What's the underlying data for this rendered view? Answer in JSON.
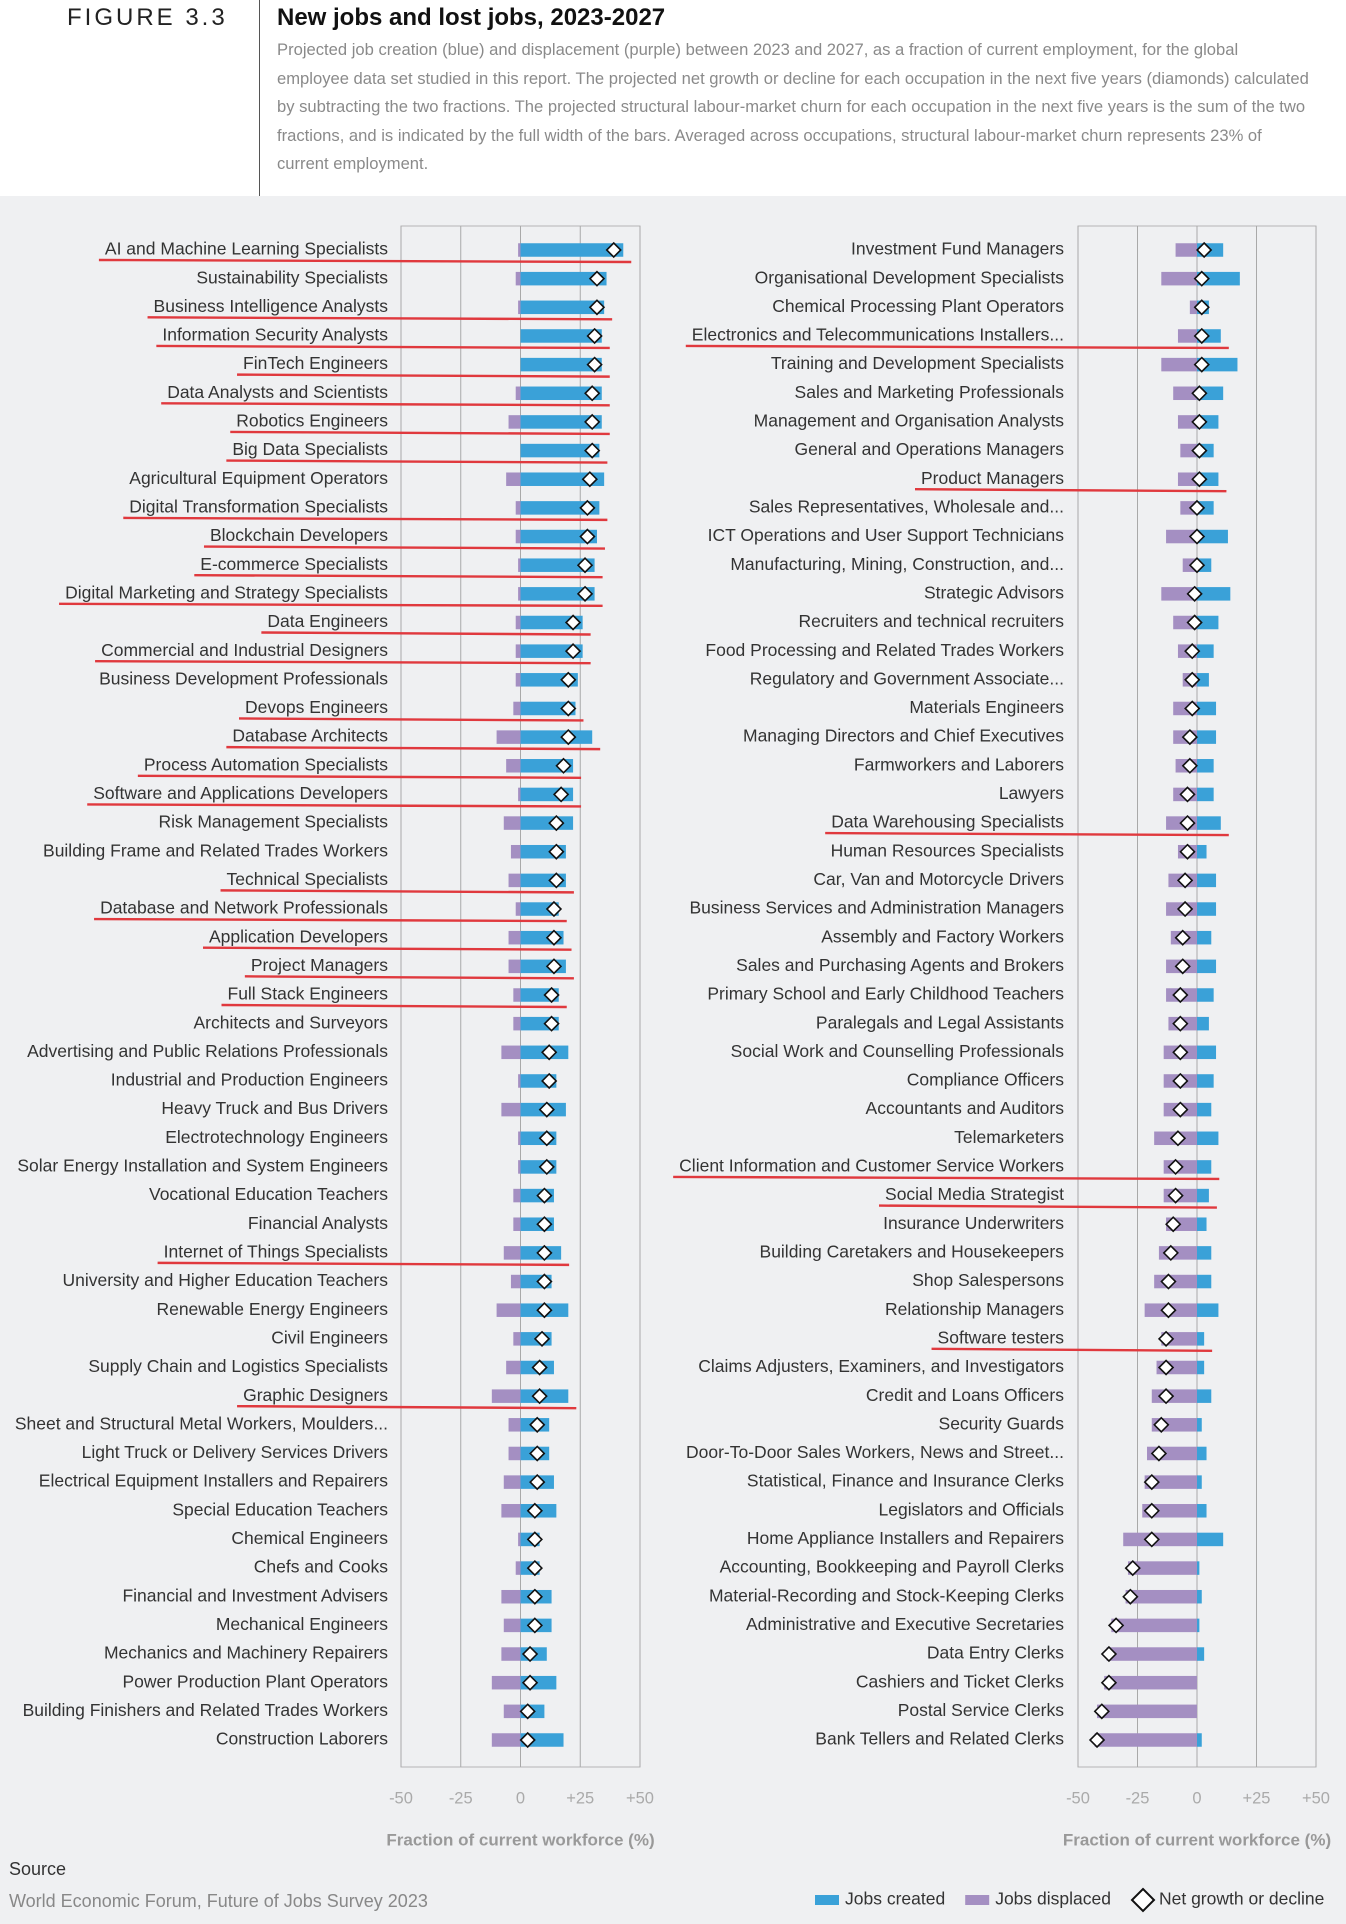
{
  "header": {
    "figure_label": "FIGURE 3.3",
    "title": "New jobs and lost jobs, 2023-2027",
    "subtitle": "Projected job creation (blue) and displacement (purple) between 2023 and 2027, as a fraction of current employment, for the global employee data set studied in this report. The projected net growth or decline for each occupation in the next five years (diamonds) calculated by subtracting the two fractions. The projected structural labour-market churn for each occupation in the next five years is the sum of the two fractions, and is indicated by the full width of the bars. Averaged across occupations, structural labour-market churn represents 23% of current employment."
  },
  "chart_data": {
    "type": "bar",
    "orientation": "horizontal",
    "xlabel": "Fraction of current workforce (%)",
    "xlim": [
      -50,
      50
    ],
    "xticks": [
      -50,
      -25,
      0,
      {
        "value": 25,
        "label": "+25"
      },
      {
        "value": 50,
        "label": "+50"
      }
    ],
    "grid": true,
    "legend": "bottom-right",
    "series": [
      {
        "name": "Jobs created",
        "color": "#3aa1d8"
      },
      {
        "name": "Jobs displaced",
        "color": "#a48fc2"
      },
      {
        "name": "Net growth or decline",
        "color": "#ffffff",
        "marker": "diamond"
      }
    ],
    "panels": [
      {
        "categories": [
          "AI and Machine Learning Specialists",
          "Sustainability Specialists",
          "Business Intelligence Analysts",
          "Information Security Analysts",
          "FinTech Engineers",
          "Data Analysts and Scientists",
          "Robotics Engineers",
          "Big Data Specialists",
          "Agricultural Equipment Operators",
          "Digital Transformation Specialists",
          "Blockchain Developers",
          "E-commerce Specialists",
          "Digital Marketing and Strategy Specialists",
          "Data Engineers",
          "Commercial and Industrial Designers",
          "Business Development Professionals",
          "Devops Engineers",
          "Database Architects",
          "Process Automation Specialists",
          "Software and Applications Developers",
          "Risk Management Specialists",
          "Building Frame and Related Trades Workers",
          "Technical Specialists",
          "Database and Network Professionals",
          "Application Developers",
          "Project Managers",
          "Full Stack Engineers",
          "Architects and Surveyors",
          "Advertising and Public Relations Professionals",
          "Industrial and Production Engineers",
          "Heavy Truck and Bus Drivers",
          "Electrotechnology Engineers",
          "Solar Energy Installation and System Engineers",
          "Vocational Education Teachers",
          "Financial Analysts",
          "Internet of Things Specialists",
          "University and Higher Education Teachers",
          "Renewable Energy Engineers",
          "Civil Engineers",
          "Supply Chain and Logistics Specialists",
          "Graphic Designers",
          "Sheet and Structural Metal Workers, Moulders...",
          "Light Truck or Delivery Services Drivers",
          "Electrical Equipment Installers and Repairers",
          "Special Education Teachers",
          "Chemical Engineers",
          "Chefs and Cooks",
          "Financial and Investment Advisers",
          "Mechanical Engineers",
          "Mechanics and Machinery Repairers",
          "Power Production Plant Operators",
          "Building Finishers and Related Trades Workers",
          "Construction Laborers"
        ],
        "series": [
          {
            "values": [
              43,
              36,
              35,
              34,
              34,
              34,
              34,
              33,
              35,
              33,
              32,
              31,
              31,
              26,
              26,
              24,
              23,
              30,
              22,
              22,
              22,
              19,
              19,
              16,
              18,
              19,
              16,
              16,
              20,
              15,
              19,
              15,
              15,
              14,
              14,
              17,
              13,
              20,
              13,
              14,
              20,
              12,
              12,
              14,
              15,
              8,
              8,
              13,
              13,
              11,
              15,
              10,
              18
            ]
          },
          {
            "values": [
              -1,
              -2,
              -1,
              0,
              0,
              -2,
              -5,
              0,
              -6,
              -2,
              -2,
              -1,
              -1,
              -2,
              -2,
              -2,
              -3,
              -10,
              -6,
              -1,
              -7,
              -4,
              -5,
              -2,
              -5,
              -5,
              -3,
              -3,
              -8,
              -1,
              -8,
              -1,
              -1,
              -3,
              -3,
              -7,
              -4,
              -10,
              -3,
              -6,
              -12,
              -5,
              -5,
              -7,
              -8,
              -1,
              -2,
              -8,
              -7,
              -8,
              -12,
              -7,
              -12
            ]
          },
          {
            "values": [
              39,
              32,
              32,
              31,
              31,
              30,
              30,
              30,
              29,
              28,
              28,
              27,
              27,
              22,
              22,
              20,
              20,
              20,
              18,
              17,
              15,
              15,
              15,
              14,
              14,
              14,
              13,
              13,
              12,
              12,
              11,
              11,
              11,
              10,
              10,
              10,
              10,
              10,
              9,
              8,
              8,
              7,
              7,
              7,
              6,
              6,
              6,
              6,
              6,
              4,
              4,
              3,
              3
            ]
          }
        ],
        "underlined": [
          0,
          2,
          3,
          4,
          5,
          6,
          7,
          9,
          10,
          11,
          12,
          13,
          14,
          16,
          17,
          18,
          19,
          22,
          23,
          24,
          25,
          26,
          35,
          40
        ]
      },
      {
        "categories": [
          "Investment Fund Managers",
          "Organisational Development Specialists",
          "Chemical Processing Plant Operators",
          "Electronics and Telecommunications Installers...",
          "Training and Development Specialists",
          "Sales and Marketing Professionals",
          "Management and Organisation Analysts",
          "General and Operations Managers",
          "Product Managers",
          "Sales Representatives, Wholesale and...",
          "ICT Operations and User Support Technicians",
          "Manufacturing, Mining, Construction, and...",
          "Strategic Advisors",
          "Recruiters and technical recruiters",
          "Food Processing and Related Trades Workers",
          "Regulatory and Government Associate...",
          "Materials Engineers",
          "Managing Directors and Chief Executives",
          "Farmworkers and Laborers",
          "Lawyers",
          "Data Warehousing Specialists",
          "Human Resources Specialists",
          "Car, Van and Motorcycle Drivers",
          "Business Services and Administration Managers",
          "Assembly and Factory Workers",
          "Sales and Purchasing Agents and Brokers",
          "Primary School and Early Childhood Teachers",
          "Paralegals and Legal Assistants",
          "Social Work and Counselling Professionals",
          "Compliance Officers",
          "Accountants and Auditors",
          "Telemarketers",
          "Client Information and Customer Service Workers",
          "Social Media Strategist",
          "Insurance Underwriters",
          "Building Caretakers and Housekeepers",
          "Shop Salespersons",
          "Relationship Managers",
          "Software testers",
          "Claims Adjusters, Examiners, and Investigators",
          "Credit and Loans Officers",
          "Security Guards",
          "Door-To-Door Sales Workers, News and Street...",
          "Statistical, Finance and Insurance Clerks",
          "Legislators and Officials",
          "Home Appliance Installers and Repairers",
          "Accounting, Bookkeeping and Payroll Clerks",
          "Material-Recording and Stock-Keeping Clerks",
          "Administrative and Executive Secretaries",
          "Data Entry Clerks",
          "Cashiers and Ticket Clerks",
          "Postal Service Clerks",
          "Bank Tellers and Related Clerks"
        ],
        "series": [
          {
            "values": [
              11,
              18,
              5,
              10,
              17,
              11,
              9,
              7,
              9,
              7,
              13,
              6,
              14,
              9,
              7,
              5,
              8,
              8,
              7,
              7,
              10,
              4,
              8,
              8,
              6,
              8,
              7,
              5,
              8,
              7,
              6,
              9,
              6,
              5,
              4,
              6,
              6,
              9,
              3,
              3,
              6,
              2,
              4,
              2,
              4,
              11,
              1,
              2,
              1,
              3,
              0,
              0,
              2
            ]
          },
          {
            "values": [
              -9,
              -15,
              -3,
              -8,
              -15,
              -10,
              -8,
              -7,
              -8,
              -7,
              -13,
              -6,
              -15,
              -10,
              -8,
              -6,
              -10,
              -10,
              -9,
              -10,
              -13,
              -8,
              -12,
              -13,
              -11,
              -13,
              -13,
              -12,
              -14,
              -14,
              -14,
              -18,
              -14,
              -14,
              -13,
              -16,
              -18,
              -22,
              -15,
              -17,
              -19,
              -19,
              -21,
              -22,
              -23,
              -31,
              -29,
              -30,
              -36,
              -38,
              -39,
              -42,
              -43
            ]
          },
          {
            "values": [
              3,
              2,
              2,
              2,
              2,
              1,
              1,
              1,
              1,
              0,
              0,
              0,
              -1,
              -1,
              -2,
              -2,
              -2,
              -3,
              -3,
              -4,
              -4,
              -4,
              -5,
              -5,
              -6,
              -6,
              -7,
              -7,
              -7,
              -7,
              -7,
              -8,
              -9,
              -9,
              -10,
              -11,
              -12,
              -12,
              -13,
              -13,
              -13,
              -15,
              -16,
              -19,
              -19,
              -19,
              -27,
              -28,
              -34,
              -37,
              -37,
              -40,
              -42
            ]
          }
        ],
        "underlined": [
          3,
          8,
          20,
          32,
          33,
          38
        ]
      }
    ]
  },
  "source": {
    "heading": "Source",
    "text": "World Economic Forum, Future of Jobs Survey 2023"
  }
}
